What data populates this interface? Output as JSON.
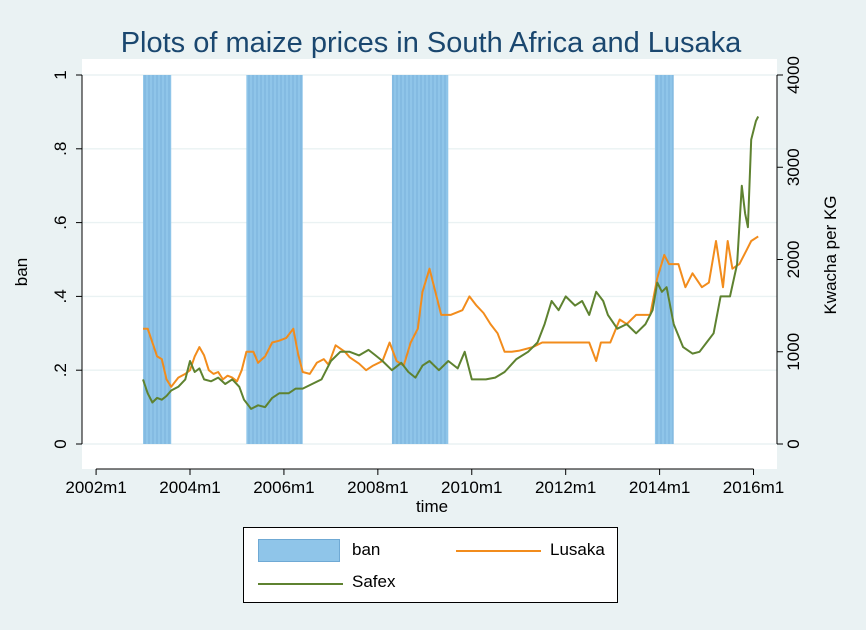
{
  "chart_data": {
    "type": "line",
    "title": "Plots of maize prices in South Africa and Lusaka",
    "xlabel": "time",
    "ylabel_left": "ban",
    "ylabel_right": "Kwacha per KG",
    "x_range": [
      2002.0,
      2016.1
    ],
    "x_ticks": [
      {
        "value": 2002,
        "label": "2002m1"
      },
      {
        "value": 2004,
        "label": "2004m1"
      },
      {
        "value": 2006,
        "label": "2006m1"
      },
      {
        "value": 2008,
        "label": "2008m1"
      },
      {
        "value": 2010,
        "label": "2010m1"
      },
      {
        "value": 2012,
        "label": "2012m1"
      },
      {
        "value": 2014,
        "label": "2014m1"
      },
      {
        "value": 2016,
        "label": "2016m1"
      }
    ],
    "y_left_range": [
      0,
      1
    ],
    "y_left_ticks": [
      {
        "value": 0,
        "label": "0"
      },
      {
        "value": 0.2,
        "label": ".2"
      },
      {
        "value": 0.4,
        "label": ".4"
      },
      {
        "value": 0.6,
        "label": ".6"
      },
      {
        "value": 0.8,
        "label": ".8"
      },
      {
        "value": 1,
        "label": "1"
      }
    ],
    "y_right_range": [
      0,
      4000
    ],
    "y_right_ticks": [
      {
        "value": 0,
        "label": "0"
      },
      {
        "value": 1000,
        "label": "1000"
      },
      {
        "value": 2000,
        "label": "2000"
      },
      {
        "value": 3000,
        "label": "3000"
      },
      {
        "value": 4000,
        "label": "4000"
      }
    ],
    "grid": true,
    "legend_position": "bottom",
    "ban_periods": [
      {
        "start": 2003.0,
        "end": 2003.6
      },
      {
        "start": 2005.2,
        "end": 2006.4
      },
      {
        "start": 2008.3,
        "end": 2009.5
      },
      {
        "start": 2013.9,
        "end": 2014.3
      }
    ],
    "series": [
      {
        "name": "Lusaka",
        "color": "#f28c1c",
        "axis": "right",
        "points": [
          [
            2003.0,
            1250
          ],
          [
            2003.1,
            1250
          ],
          [
            2003.2,
            1100
          ],
          [
            2003.3,
            950
          ],
          [
            2003.4,
            920
          ],
          [
            2003.5,
            700
          ],
          [
            2003.6,
            620
          ],
          [
            2003.75,
            720
          ],
          [
            2003.9,
            760
          ],
          [
            2004.0,
            800
          ],
          [
            2004.1,
            950
          ],
          [
            2004.2,
            1050
          ],
          [
            2004.3,
            960
          ],
          [
            2004.4,
            800
          ],
          [
            2004.5,
            760
          ],
          [
            2004.6,
            780
          ],
          [
            2004.7,
            700
          ],
          [
            2004.8,
            740
          ],
          [
            2004.9,
            720
          ],
          [
            2005.0,
            680
          ],
          [
            2005.1,
            800
          ],
          [
            2005.2,
            1000
          ],
          [
            2005.35,
            1000
          ],
          [
            2005.45,
            880
          ],
          [
            2005.6,
            950
          ],
          [
            2005.75,
            1100
          ],
          [
            2005.9,
            1120
          ],
          [
            2006.05,
            1150
          ],
          [
            2006.2,
            1250
          ],
          [
            2006.3,
            980
          ],
          [
            2006.4,
            780
          ],
          [
            2006.55,
            760
          ],
          [
            2006.7,
            880
          ],
          [
            2006.85,
            920
          ],
          [
            2006.95,
            860
          ],
          [
            2007.1,
            1070
          ],
          [
            2007.3,
            1000
          ],
          [
            2007.4,
            940
          ],
          [
            2007.6,
            870
          ],
          [
            2007.75,
            800
          ],
          [
            2007.9,
            850
          ],
          [
            2008.1,
            900
          ],
          [
            2008.25,
            1100
          ],
          [
            2008.4,
            900
          ],
          [
            2008.55,
            850
          ],
          [
            2008.7,
            1100
          ],
          [
            2008.85,
            1250
          ],
          [
            2008.95,
            1650
          ],
          [
            2009.1,
            1900
          ],
          [
            2009.2,
            1700
          ],
          [
            2009.35,
            1400
          ],
          [
            2009.55,
            1400
          ],
          [
            2009.8,
            1450
          ],
          [
            2009.95,
            1600
          ],
          [
            2010.1,
            1500
          ],
          [
            2010.25,
            1420
          ],
          [
            2010.4,
            1300
          ],
          [
            2010.55,
            1200
          ],
          [
            2010.7,
            1000
          ],
          [
            2010.85,
            1000
          ],
          [
            2011.0,
            1010
          ],
          [
            2011.3,
            1050
          ],
          [
            2011.5,
            1100
          ],
          [
            2011.8,
            1100
          ],
          [
            2012.2,
            1100
          ],
          [
            2012.5,
            1100
          ],
          [
            2012.65,
            900
          ],
          [
            2012.75,
            1100
          ],
          [
            2012.95,
            1100
          ],
          [
            2013.15,
            1350
          ],
          [
            2013.3,
            1300
          ],
          [
            2013.5,
            1400
          ],
          [
            2013.8,
            1400
          ],
          [
            2013.95,
            1800
          ],
          [
            2014.1,
            2050
          ],
          [
            2014.2,
            1950
          ],
          [
            2014.4,
            1950
          ],
          [
            2014.55,
            1700
          ],
          [
            2014.7,
            1850
          ],
          [
            2014.9,
            1700
          ],
          [
            2015.05,
            1750
          ],
          [
            2015.2,
            2200
          ],
          [
            2015.35,
            1700
          ],
          [
            2015.45,
            2200
          ],
          [
            2015.55,
            1900
          ],
          [
            2015.7,
            1950
          ],
          [
            2015.85,
            2100
          ],
          [
            2015.95,
            2200
          ],
          [
            2016.1,
            2250
          ]
        ]
      },
      {
        "name": "Safex",
        "color": "#5e8230",
        "axis": "right",
        "points": [
          [
            2003.0,
            700
          ],
          [
            2003.1,
            550
          ],
          [
            2003.2,
            450
          ],
          [
            2003.3,
            500
          ],
          [
            2003.4,
            480
          ],
          [
            2003.5,
            520
          ],
          [
            2003.6,
            580
          ],
          [
            2003.75,
            620
          ],
          [
            2003.9,
            700
          ],
          [
            2004.0,
            900
          ],
          [
            2004.1,
            780
          ],
          [
            2004.2,
            820
          ],
          [
            2004.3,
            700
          ],
          [
            2004.45,
            680
          ],
          [
            2004.6,
            720
          ],
          [
            2004.75,
            650
          ],
          [
            2004.9,
            700
          ],
          [
            2005.05,
            620
          ],
          [
            2005.15,
            480
          ],
          [
            2005.3,
            380
          ],
          [
            2005.45,
            420
          ],
          [
            2005.6,
            400
          ],
          [
            2005.75,
            500
          ],
          [
            2005.9,
            550
          ],
          [
            2006.1,
            550
          ],
          [
            2006.25,
            600
          ],
          [
            2006.4,
            600
          ],
          [
            2006.6,
            650
          ],
          [
            2006.8,
            700
          ],
          [
            2006.9,
            800
          ],
          [
            2007.0,
            900
          ],
          [
            2007.2,
            1000
          ],
          [
            2007.4,
            1000
          ],
          [
            2007.6,
            960
          ],
          [
            2007.8,
            1020
          ],
          [
            2007.95,
            960
          ],
          [
            2008.1,
            900
          ],
          [
            2008.3,
            800
          ],
          [
            2008.5,
            880
          ],
          [
            2008.65,
            780
          ],
          [
            2008.8,
            720
          ],
          [
            2008.95,
            850
          ],
          [
            2009.1,
            900
          ],
          [
            2009.3,
            800
          ],
          [
            2009.5,
            900
          ],
          [
            2009.7,
            820
          ],
          [
            2009.85,
            1000
          ],
          [
            2010.0,
            700
          ],
          [
            2010.3,
            700
          ],
          [
            2010.5,
            720
          ],
          [
            2010.7,
            780
          ],
          [
            2010.95,
            920
          ],
          [
            2011.2,
            1000
          ],
          [
            2011.4,
            1100
          ],
          [
            2011.55,
            1300
          ],
          [
            2011.7,
            1550
          ],
          [
            2011.85,
            1450
          ],
          [
            2012.0,
            1600
          ],
          [
            2012.2,
            1500
          ],
          [
            2012.35,
            1550
          ],
          [
            2012.5,
            1400
          ],
          [
            2012.65,
            1650
          ],
          [
            2012.8,
            1550
          ],
          [
            2012.9,
            1400
          ],
          [
            2013.1,
            1250
          ],
          [
            2013.3,
            1300
          ],
          [
            2013.5,
            1200
          ],
          [
            2013.7,
            1300
          ],
          [
            2013.85,
            1450
          ],
          [
            2013.95,
            1750
          ],
          [
            2014.05,
            1650
          ],
          [
            2014.15,
            1700
          ],
          [
            2014.3,
            1300
          ],
          [
            2014.5,
            1050
          ],
          [
            2014.7,
            980
          ],
          [
            2014.85,
            1000
          ],
          [
            2015.0,
            1100
          ],
          [
            2015.15,
            1200
          ],
          [
            2015.3,
            1600
          ],
          [
            2015.5,
            1600
          ],
          [
            2015.65,
            1950
          ],
          [
            2015.75,
            2800
          ],
          [
            2015.82,
            2500
          ],
          [
            2015.88,
            2350
          ],
          [
            2015.95,
            3300
          ],
          [
            2016.05,
            3500
          ],
          [
            2016.1,
            3550
          ]
        ]
      }
    ]
  },
  "legend": {
    "ban_label": "ban",
    "lusaka_label": "Lusaka",
    "safex_label": "Safex"
  },
  "colors": {
    "background": "#eaf2f3",
    "plot_background": "#ffffff",
    "ban_fill": "#8fc5e9",
    "ban_stripe": "#6fa9d4",
    "grid": "#eaf2f3",
    "title": "#1a476f"
  }
}
